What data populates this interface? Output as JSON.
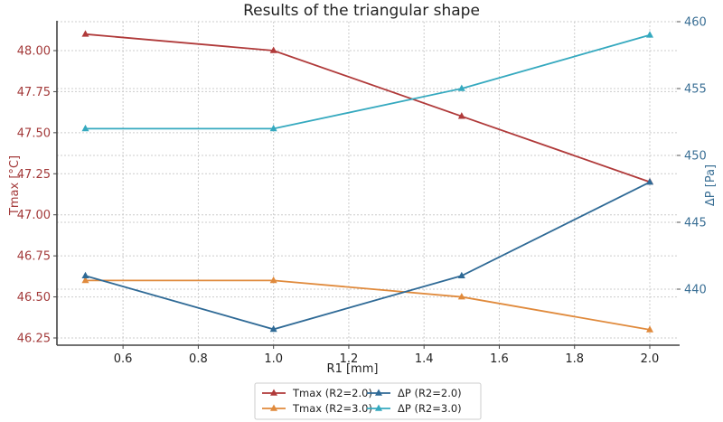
{
  "chart_data": {
    "type": "line",
    "title": "Results of the triangular shape",
    "xlabel": "R1 [mm]",
    "ylabel": "Tmax [°C]",
    "ylabel_right": "ΔP [Pa]",
    "x": [
      0.5,
      1.0,
      1.5,
      2.0
    ],
    "xlim": [
      0.425,
      2.075
    ],
    "x_ticks": [
      "0.6",
      "0.8",
      "1.0",
      "1.2",
      "1.4",
      "1.6",
      "1.8",
      "2.0"
    ],
    "ylim_left": [
      46.21,
      48.22
    ],
    "y_ticks_left": [
      "46.25",
      "46.50",
      "46.75",
      "47.00",
      "47.25",
      "47.50",
      "47.75",
      "48.00"
    ],
    "ylim_right": [
      436.2,
      460.3
    ],
    "y_ticks_right": [
      "440",
      "445",
      "450",
      "455",
      "460"
    ],
    "grid": true,
    "legend_position": "below plot, center, 2 columns",
    "series": [
      {
        "name": "Tmax (R2=2.0)",
        "axis": "left",
        "color": "#b03a3a",
        "marker": "triangle",
        "values": [
          48.1,
          48.0,
          47.6,
          47.2
        ]
      },
      {
        "name": "Tmax (R2=3.0)",
        "axis": "left",
        "color": "#e08a3c",
        "marker": "triangle",
        "values": [
          46.6,
          46.6,
          46.5,
          46.3
        ]
      },
      {
        "name": "ΔP (R2=2.0)",
        "axis": "right",
        "color": "#2f6a96",
        "marker": "triangle",
        "values": [
          441,
          437,
          441,
          448
        ]
      },
      {
        "name": "ΔP (R2=3.0)",
        "axis": "right",
        "color": "#35a9bf",
        "marker": "triangle",
        "values": [
          452,
          452,
          455,
          459
        ]
      }
    ]
  },
  "colors": {
    "left_axis": "#a33a3a",
    "right_axis": "#3a6f95",
    "grid": "#cccccc",
    "spine": "#444444"
  }
}
